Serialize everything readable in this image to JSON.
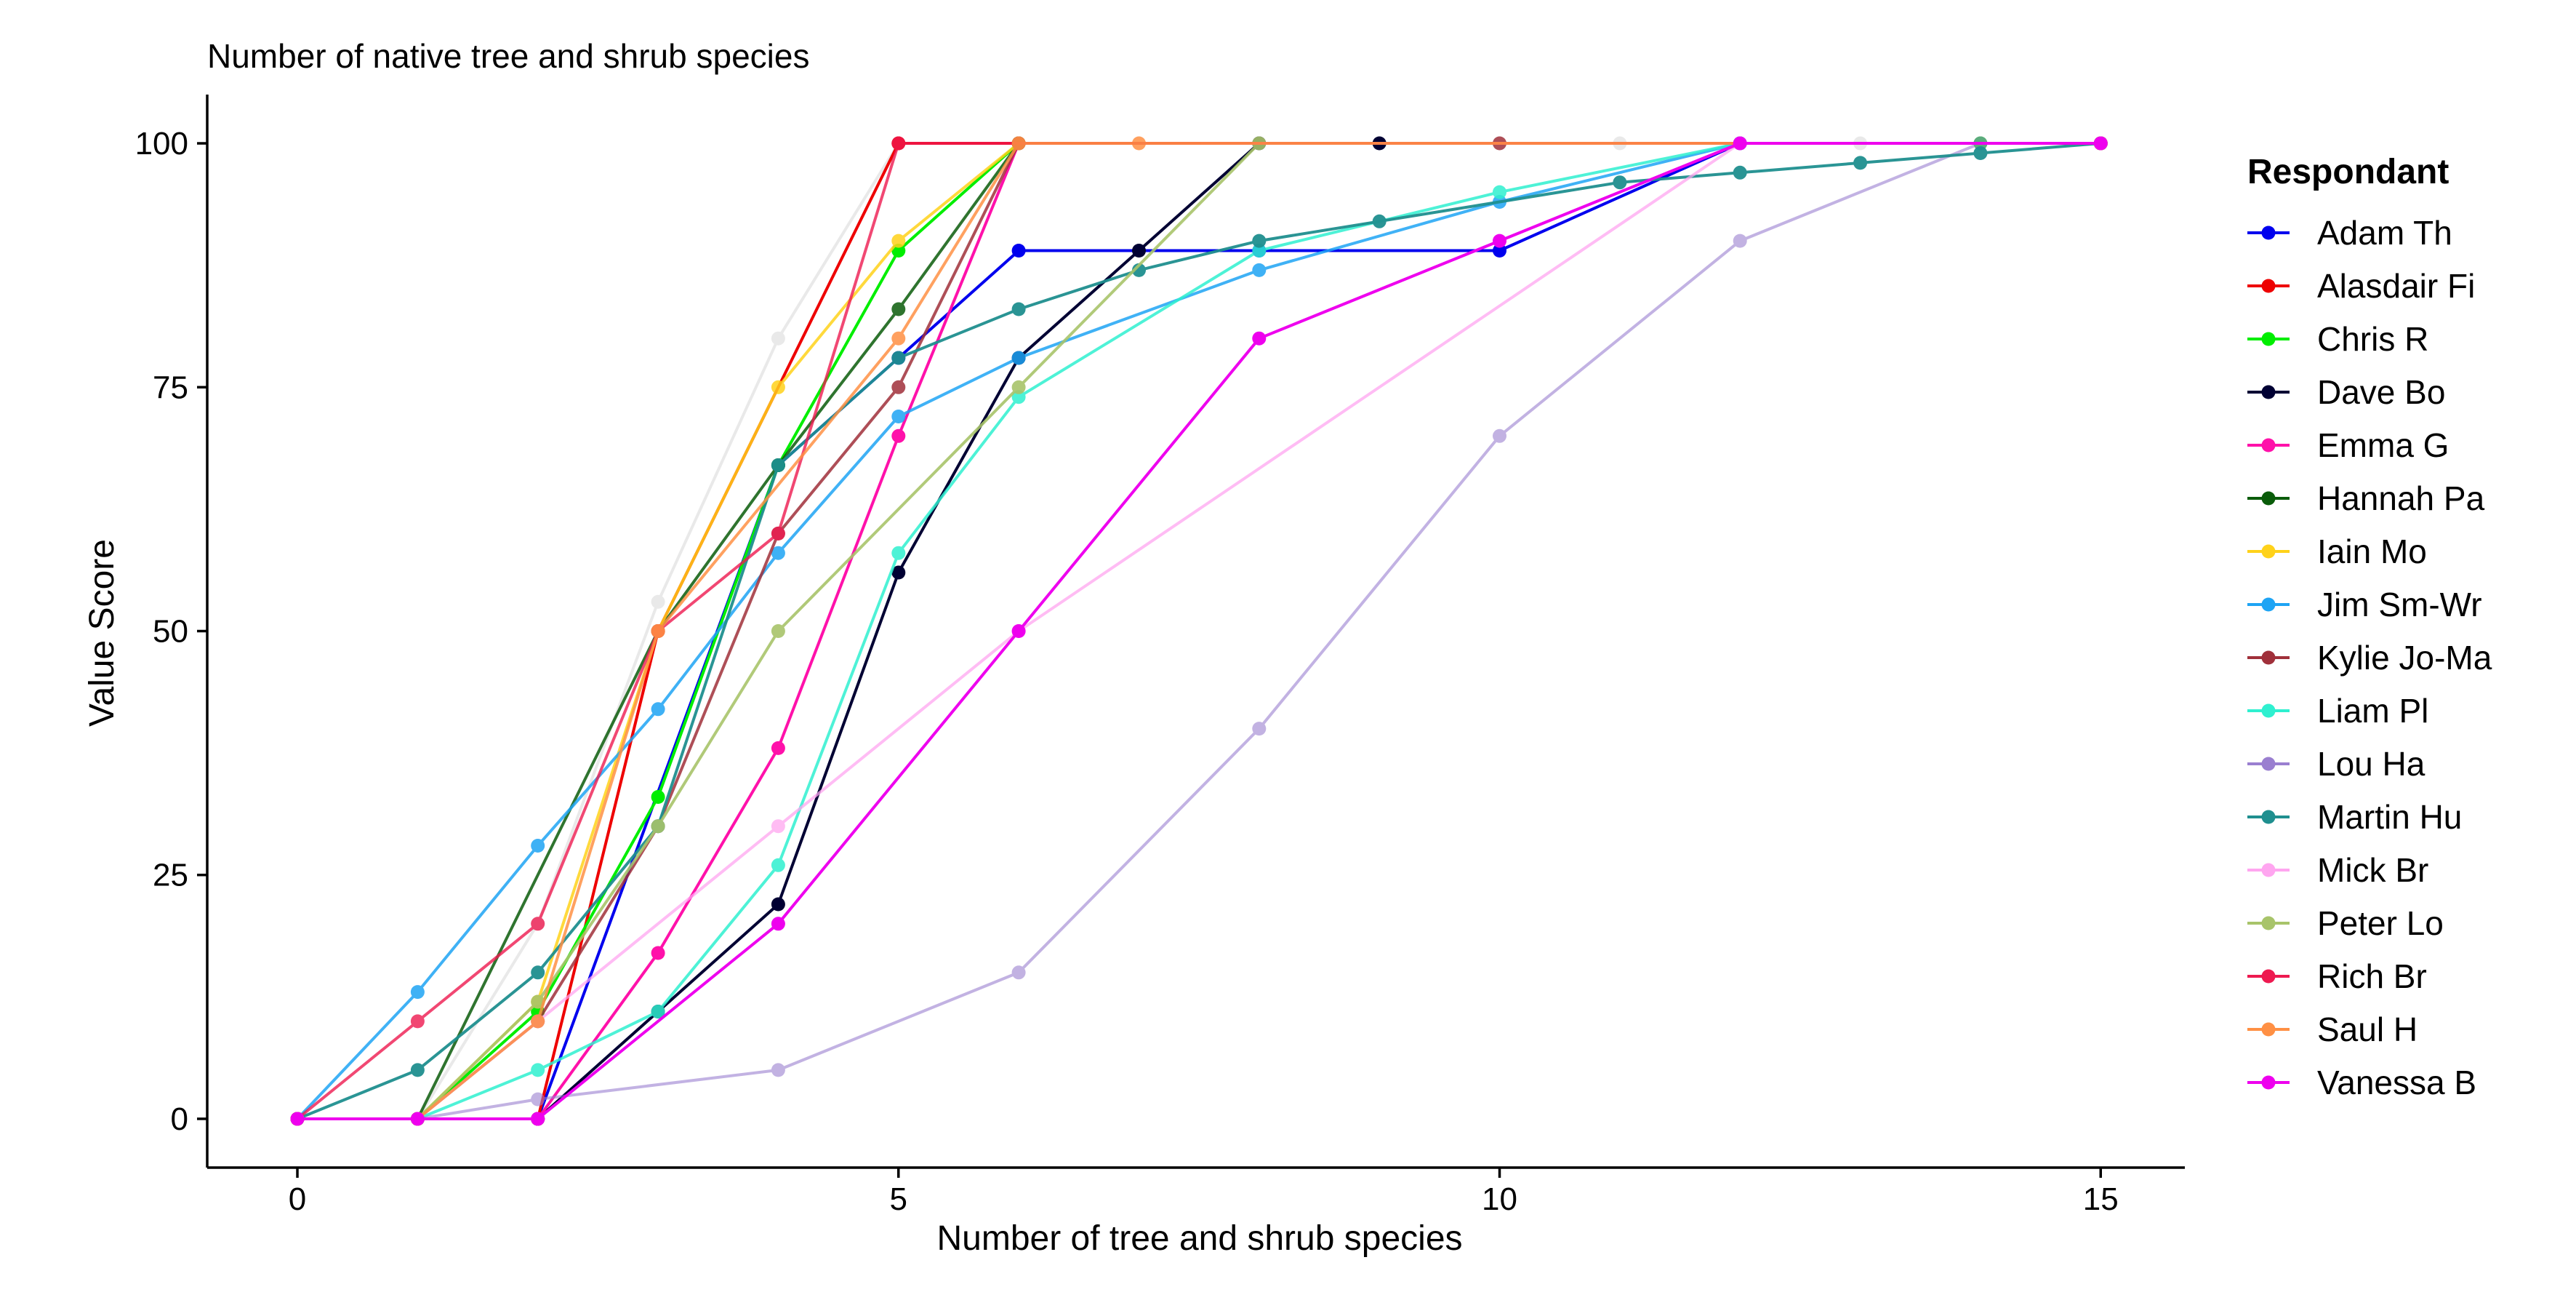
{
  "chart_data": {
    "type": "line",
    "title": "Number of native tree and shrub species",
    "xlabel": "Number of tree and shrub species",
    "ylabel": "Value Score",
    "xlim": [
      -0.75,
      15.7
    ],
    "ylim": [
      -5,
      105
    ],
    "xticks": [
      0,
      5,
      10,
      15
    ],
    "yticks": [
      0,
      25,
      50,
      75,
      100
    ],
    "grid": false,
    "legend": {
      "title": "Respondant",
      "position": "right"
    },
    "series": [
      {
        "name": "Adam Th",
        "color": "#0000ee",
        "alpha": 1.0,
        "points": [
          [
            0,
            0
          ],
          [
            1,
            0
          ],
          [
            2,
            0
          ],
          [
            4,
            67
          ],
          [
            5,
            78
          ],
          [
            6,
            89
          ],
          [
            8,
            89
          ],
          [
            10,
            89
          ],
          [
            12,
            100
          ],
          [
            15,
            100
          ]
        ]
      },
      {
        "name": "Alasdair Fi",
        "color": "#ee0000",
        "alpha": 1.0,
        "points": [
          [
            0,
            0
          ],
          [
            1,
            0
          ],
          [
            2,
            0
          ],
          [
            3,
            50
          ],
          [
            5,
            100
          ],
          [
            15,
            100
          ]
        ]
      },
      {
        "name": "Chris R",
        "color": "#00ee00",
        "alpha": 1.0,
        "points": [
          [
            0,
            0
          ],
          [
            1,
            0
          ],
          [
            2,
            11
          ],
          [
            3,
            33
          ],
          [
            4,
            67
          ],
          [
            5,
            89
          ],
          [
            6,
            100
          ],
          [
            14,
            100
          ]
        ]
      },
      {
        "name": "Dave Bo",
        "color": "#000033",
        "alpha": 1.0,
        "points": [
          [
            0,
            0
          ],
          [
            1,
            0
          ],
          [
            2,
            0
          ],
          [
            3,
            11
          ],
          [
            4,
            22
          ],
          [
            5,
            56
          ],
          [
            6,
            78
          ],
          [
            7,
            89
          ],
          [
            8,
            100
          ],
          [
            9,
            100
          ],
          [
            15,
            100
          ]
        ]
      },
      {
        "name": "Emma G",
        "color": "#ff11aa",
        "alpha": 1.0,
        "points": [
          [
            0,
            0
          ],
          [
            1,
            0
          ],
          [
            2,
            0
          ],
          [
            3,
            17
          ],
          [
            4,
            38
          ],
          [
            5,
            70
          ],
          [
            6,
            100
          ],
          [
            15,
            100
          ]
        ]
      },
      {
        "name": "Hannah Pa",
        "color": "#0a5c0a",
        "alpha": 0.85,
        "points": [
          [
            0,
            0
          ],
          [
            1,
            0
          ],
          [
            3,
            50
          ],
          [
            4,
            67
          ],
          [
            5,
            83
          ],
          [
            6,
            100
          ],
          [
            15,
            100
          ]
        ]
      },
      {
        "name": "Iain Mo",
        "color": "#ffd21a",
        "alpha": 0.85,
        "points": [
          [
            0,
            0
          ],
          [
            1,
            0
          ],
          [
            2,
            12
          ],
          [
            3,
            50
          ],
          [
            4,
            75
          ],
          [
            5,
            90
          ],
          [
            6,
            100
          ],
          [
            15,
            100
          ]
        ]
      },
      {
        "name": "Jim Sm-Wr",
        "color": "#1ea4f4",
        "alpha": 0.85,
        "points": [
          [
            0,
            0
          ],
          [
            1,
            13
          ],
          [
            2,
            28
          ],
          [
            3,
            42
          ],
          [
            4,
            58
          ],
          [
            5,
            72
          ],
          [
            6,
            78
          ],
          [
            8,
            87
          ],
          [
            10,
            94
          ],
          [
            12,
            100
          ],
          [
            15,
            100
          ]
        ]
      },
      {
        "name": "Kylie Jo-Ma",
        "color": "#a0303a",
        "alpha": 0.85,
        "points": [
          [
            0,
            0
          ],
          [
            1,
            0
          ],
          [
            2,
            10
          ],
          [
            3,
            30
          ],
          [
            4,
            60
          ],
          [
            5,
            75
          ],
          [
            6,
            100
          ],
          [
            10,
            100
          ],
          [
            15,
            100
          ]
        ]
      },
      {
        "name": "Liam Pl",
        "color": "#2ff0d0",
        "alpha": 0.85,
        "points": [
          [
            0,
            0
          ],
          [
            1,
            0
          ],
          [
            2,
            5
          ],
          [
            3,
            11
          ],
          [
            4,
            26
          ],
          [
            5,
            58
          ],
          [
            6,
            74
          ],
          [
            8,
            89
          ],
          [
            10,
            95
          ],
          [
            12,
            100
          ],
          [
            15,
            100
          ]
        ]
      },
      {
        "name": "Lou Ha",
        "color": "#9a7fd0",
        "alpha": 0.6,
        "points": [
          [
            0,
            0
          ],
          [
            1,
            0
          ],
          [
            2,
            2
          ],
          [
            4,
            5
          ],
          [
            6,
            15
          ],
          [
            8,
            40
          ],
          [
            10,
            70
          ],
          [
            12,
            90
          ],
          [
            14,
            100
          ],
          [
            15,
            100
          ]
        ]
      },
      {
        "name": "Martin Hu",
        "color": "#1f8f8f",
        "alpha": 0.95,
        "points": [
          [
            0,
            0
          ],
          [
            1,
            5
          ],
          [
            2,
            15
          ],
          [
            3,
            30
          ],
          [
            4,
            67
          ],
          [
            5,
            78
          ],
          [
            6,
            83
          ],
          [
            7,
            87
          ],
          [
            8,
            90
          ],
          [
            9,
            92
          ],
          [
            11,
            96
          ],
          [
            12,
            97
          ],
          [
            13,
            98
          ],
          [
            14,
            99
          ],
          [
            15,
            100
          ]
        ]
      },
      {
        "name": "Mick Br",
        "color": "#ffa6f0",
        "alpha": 0.75,
        "points": [
          [
            0,
            0
          ],
          [
            1,
            0
          ],
          [
            2,
            10
          ],
          [
            4,
            30
          ],
          [
            6,
            50
          ],
          [
            12,
            100
          ],
          [
            15,
            100
          ]
        ]
      },
      {
        "name": "Peter Lo",
        "color": "#a8c46a",
        "alpha": 0.9,
        "points": [
          [
            0,
            0
          ],
          [
            1,
            0
          ],
          [
            2,
            12
          ],
          [
            3,
            30
          ],
          [
            4,
            50
          ],
          [
            6,
            75
          ],
          [
            8,
            100
          ],
          [
            15,
            100
          ]
        ]
      },
      {
        "name": "Rich Br",
        "color": "#ee1a50",
        "alpha": 0.8,
        "points": [
          [
            0,
            0
          ],
          [
            1,
            10
          ],
          [
            2,
            20
          ],
          [
            3,
            50
          ],
          [
            4,
            60
          ],
          [
            5,
            100
          ],
          [
            15,
            100
          ]
        ]
      },
      {
        "name": "Saul H",
        "color": "#ff9044",
        "alpha": 0.85,
        "points": [
          [
            0,
            0
          ],
          [
            1,
            0
          ],
          [
            2,
            10
          ],
          [
            3,
            50
          ],
          [
            5,
            80
          ],
          [
            6,
            100
          ],
          [
            7,
            100
          ],
          [
            15,
            100
          ]
        ]
      },
      {
        "name": "Vanessa B",
        "color": "#ee00ee",
        "alpha": 1.0,
        "points": [
          [
            0,
            0
          ],
          [
            1,
            0
          ],
          [
            2,
            0
          ],
          [
            4,
            20
          ],
          [
            6,
            50
          ],
          [
            8,
            80
          ],
          [
            10,
            90
          ],
          [
            12,
            100
          ],
          [
            15,
            100
          ]
        ]
      },
      {
        "name": "",
        "color": "#e4e4e4",
        "alpha": 0.8,
        "points": [
          [
            0,
            0
          ],
          [
            1,
            0
          ],
          [
            2,
            20
          ],
          [
            3,
            53
          ],
          [
            4,
            80
          ],
          [
            5,
            100
          ],
          [
            11,
            100
          ],
          [
            13,
            100
          ],
          [
            15,
            100
          ]
        ]
      }
    ]
  }
}
